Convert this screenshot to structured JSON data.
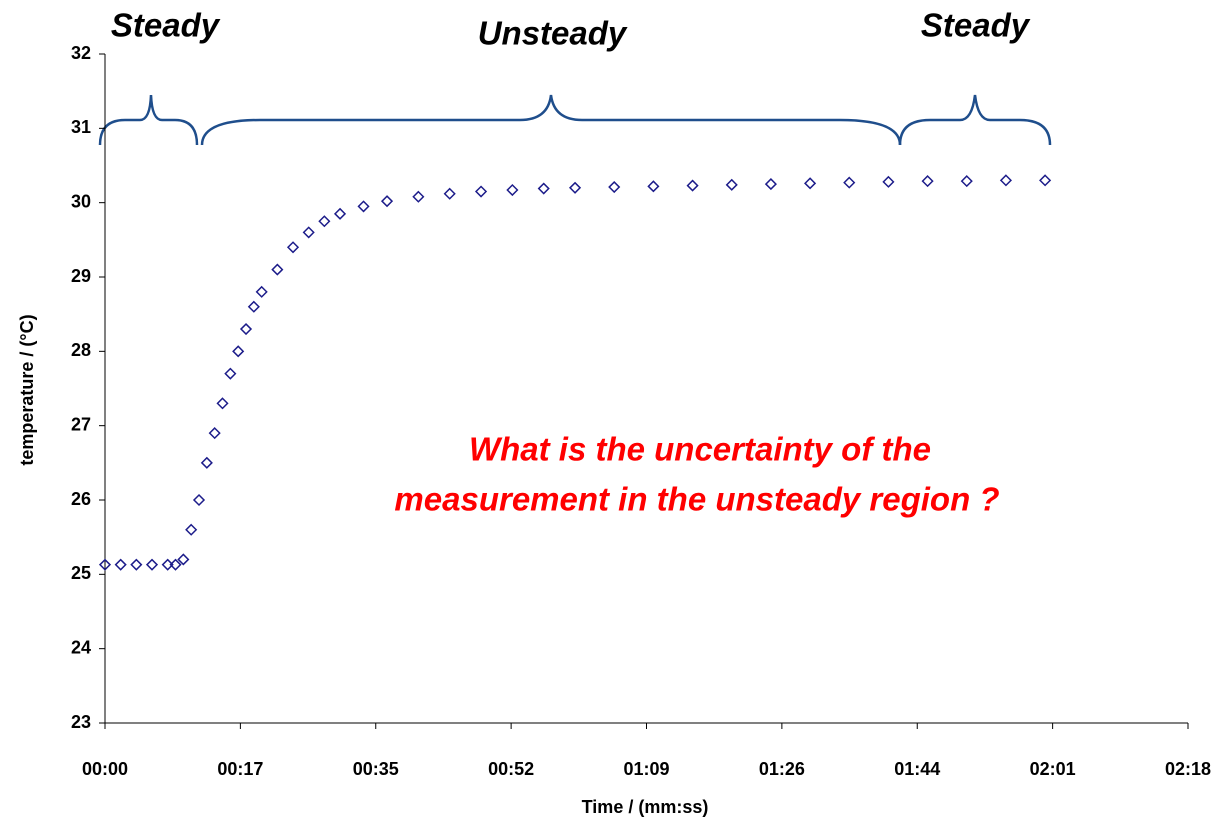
{
  "chart_data": {
    "type": "scatter",
    "xlabel": "Time / (mm:ss)",
    "ylabel": "temperature / (°C)",
    "annotations": [
      "Steady",
      "Unsteady",
      "Steady",
      "What is the uncertainty of the",
      "measurement in the unsteady region ?"
    ],
    "series": [
      {
        "color": "#1c1c8a",
        "x": [
          0,
          2,
          4,
          6,
          8,
          9,
          10,
          11,
          12,
          13,
          14,
          15,
          16,
          17,
          18,
          19,
          20,
          22,
          24,
          26,
          28,
          30,
          33,
          36,
          40,
          44,
          48,
          52,
          56,
          60,
          65,
          70,
          75,
          80,
          85,
          90,
          95,
          100,
          105,
          110,
          115,
          120
        ],
        "values": [
          25.13,
          25.13,
          25.13,
          25.13,
          25.13,
          25.13,
          25.2,
          25.6,
          26.0,
          26.5,
          26.9,
          27.3,
          27.7,
          28.0,
          28.3,
          28.6,
          28.8,
          29.1,
          29.4,
          29.6,
          29.75,
          29.85,
          29.95,
          30.02,
          30.08,
          30.12,
          30.15,
          30.17,
          30.19,
          30.2,
          30.21,
          30.22,
          30.23,
          30.24,
          30.25,
          30.26,
          30.27,
          30.28,
          30.29,
          30.29,
          30.3,
          30.3
        ]
      }
    ],
    "xlim": [
      0,
      138.24
    ],
    "xticks": [
      {
        "value": 0,
        "label": "00:00"
      },
      {
        "value": 17.28,
        "label": "00:17"
      },
      {
        "value": 34.56,
        "label": "00:35"
      },
      {
        "value": 51.84,
        "label": "00:52"
      },
      {
        "value": 69.12,
        "label": "01:09"
      },
      {
        "value": 86.4,
        "label": "01:26"
      },
      {
        "value": 103.68,
        "label": "01:44"
      },
      {
        "value": 120.96,
        "label": "02:01"
      },
      {
        "value": 138.24,
        "label": "02:18"
      }
    ],
    "ylim": [
      23,
      32
    ],
    "yticks": [
      23,
      24,
      25,
      26,
      27,
      28,
      29,
      30,
      31,
      32
    ]
  }
}
